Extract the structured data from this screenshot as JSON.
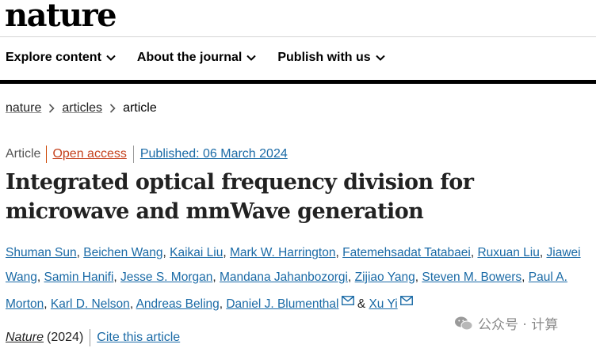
{
  "site": {
    "logo": "nature"
  },
  "nav": {
    "items": [
      {
        "label": "Explore content"
      },
      {
        "label": "About the journal"
      },
      {
        "label": "Publish with us"
      }
    ]
  },
  "breadcrumb": {
    "items": [
      "nature",
      "articles"
    ],
    "current": "article"
  },
  "article": {
    "type": "Article",
    "access": "Open access",
    "published": "Published: 06 March 2024",
    "title": "Integrated optical frequency division for microwave and mmWave generation",
    "authors": [
      "Shuman Sun",
      "Beichen Wang",
      "Kaikai Liu",
      "Mark W. Harrington",
      "Fatemehsadat Tatabaei",
      "Ruxuan Liu",
      "Jiawei Wang",
      "Samin Hanifi",
      "Jesse S. Morgan",
      "Mandana Jahanbozorgi",
      "Zijiao Yang",
      "Steven M. Bowers",
      "Paul A. Morton",
      "Karl D. Nelson",
      "Andreas Beling",
      "Daniel J. Blumenthal",
      "Xu Yi"
    ],
    "separator": ",",
    "ampersand": "&",
    "journal": "Nature",
    "year": "(2024)",
    "cite": "Cite this article"
  },
  "watermark": {
    "text": "公众号 · 计算"
  },
  "colors": {
    "link": "#1a6aa6",
    "open_access": "#c5421e",
    "text": "#222222"
  }
}
